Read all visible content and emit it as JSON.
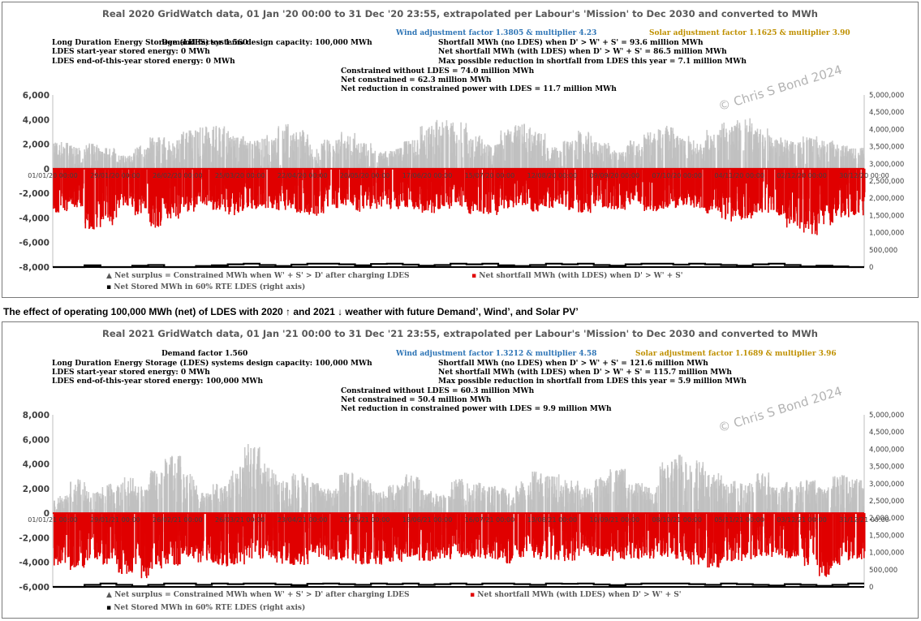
{
  "caption": "The effect of operating 100,000 MWh (net) of LDES with 2020 ↑ and 2021 ↓ weather with future Demand’, Wind’, and Solar PV’",
  "watermark": "© Chris S Bond  2024",
  "colors": {
    "surplus": "#bfbfbf",
    "shortfall": "#e00000",
    "stored": "#000000",
    "axis": "#404040",
    "zero_line": "#e00000"
  },
  "chart_data": [
    {
      "type": "scatter",
      "title": "Real 2020 GridWatch data, 01 Jan '20 00:00 to 31 Dec '20 23:55,  extrapolated per Labour's 'Mission' to Dec 2030 and converted to MWh",
      "info": {
        "demand": "Demand factor 1.560",
        "wind": "Wind adjustment factor 1.3805 & multiplier 4.23",
        "solar": "Solar adjustment factor 1.1625 & multiplier 3.90",
        "ldes_capacity": "Long Duration Energy Storage (LDES) systems design capacity: 100,000 MWh",
        "ldes_start": "LDES start-year stored energy: 0 MWh",
        "ldes_end": "LDES end-of-this-year stored energy: 0 MWh",
        "shortfall_no_ldes": "Shortfall MWh (no LDES) when D' > W' + S' = 93.6 million MWh",
        "shortfall_with_ldes": "Net shortfall MWh (with LDES) when D' > W' + S' = 86.5 million MWh",
        "max_reduction": "Max possible reduction in shortfall from LDES this year = 7.1 million MWh",
        "constrained_without": "Constrained without LDES = 74.0 million MWh",
        "net_constrained": "Net constrained = 62.3 million MWh",
        "net_reduction": "Net reduction in constrained power with LDES = 11.7 million MWh"
      },
      "y_left": {
        "min": -8000,
        "max": 6000,
        "ticks": [
          "6,000",
          "4,000",
          "2,000",
          "0",
          "-2,000",
          "-4,000",
          "-6,000",
          "-8,000"
        ]
      },
      "y_right": {
        "min": 0,
        "max": 5000000,
        "ticks": [
          "5,000,000",
          "4,500,000",
          "4,000,000",
          "3,500,000",
          "3,000,000",
          "2,500,000",
          "2,000,000",
          "1,500,000",
          "1,000,000",
          "500,000",
          "0"
        ]
      },
      "x_ticks": [
        "01/01/20 00:00",
        "29/01/20 00:00",
        "26/02/20 00:00",
        "25/03/20 00:00",
        "22/04/20 00:00",
        "20/05/20 00:00",
        "17/06/20 00:00",
        "15/07/20 00:00",
        "12/08/20 00:00",
        "09/09/20 00:00",
        "07/10/20 00:00",
        "04/11/20 00:00",
        "02/12/20 00:00",
        "30/12/20 00:00"
      ],
      "series": [
        {
          "name": "Net surplus = Constrained MWh when W' + S' > D' after charging LDES"
        },
        {
          "name": "Net shortfall MWh (with LDES) when D' > W' + S'"
        },
        {
          "name": "Net Stored MWh in 60% RTE LDES (right axis)"
        }
      ],
      "surplus_envelope": [
        2200,
        1900,
        2100,
        1700,
        1100,
        2000,
        2600,
        2400,
        3200,
        3600,
        3500,
        2700,
        2300,
        2800,
        3700,
        3200,
        2100,
        2400,
        3100,
        2100,
        1500,
        1700,
        2400,
        3500,
        4000,
        3800,
        2700,
        2000,
        3200,
        3700,
        3000,
        1800,
        2400,
        3100,
        2200,
        1500,
        2300,
        3100,
        3500,
        2900,
        2400,
        3200,
        4000,
        4300,
        3400,
        2600,
        2300,
        2700,
        2300,
        2000,
        1700
      ],
      "shortfall_envelope": [
        -3600,
        -3200,
        -5000,
        -4600,
        -3200,
        -3800,
        -4800,
        -4100,
        -3500,
        -3000,
        -3600,
        -3800,
        -3300,
        -3200,
        -3400,
        -3600,
        -3900,
        -3200,
        -3000,
        -3500,
        -3300,
        -3300,
        -3400,
        -3700,
        -3300,
        -3100,
        -3700,
        -3800,
        -3300,
        -3000,
        -3500,
        -3200,
        -3400,
        -3600,
        -3300,
        -3400,
        -3000,
        -3500,
        -3300,
        -3200,
        -3400,
        -3700,
        -4300,
        -4200,
        -3600,
        -3800,
        -4900,
        -5400,
        -4600,
        -4000,
        -3900
      ],
      "stored_steps": [
        0,
        0,
        50000,
        0,
        0,
        40000,
        60000,
        0,
        0,
        30000,
        50000,
        80000,
        100000,
        60000,
        30000,
        70000,
        100000,
        100000,
        80000,
        50000,
        90000,
        100000,
        70000,
        40000,
        60000,
        100000,
        80000,
        100000,
        50000,
        30000,
        60000,
        100000,
        80000,
        100000,
        60000,
        40000,
        80000,
        100000,
        100000,
        70000,
        100000,
        80000,
        60000,
        40000,
        80000,
        100000,
        60000,
        20000,
        40000,
        20000,
        0
      ]
    },
    {
      "type": "scatter",
      "title": "Real 2021 GridWatch data, 01 Jan '21 00:00 to 31 Dec '21 23:55,  extrapolated per Labour's 'Mission' to Dec 2030 and converted to MWh",
      "info": {
        "demand": "Demand factor 1.560",
        "wind": "Wind adjustment factor 1.3212 & multiplier 4.58",
        "solar": "Solar adjustment factor 1.1689 & multiplier 3.96",
        "ldes_capacity": "Long Duration Energy Storage (LDES) systems design capacity: 100,000 MWh",
        "ldes_start": "LDES start-year stored energy: 0 MWh",
        "ldes_end": "LDES end-of-this-year stored energy: 100,000 MWh",
        "shortfall_no_ldes": "Shortfall MWh (no LDES) when D' > W' + S' = 121.6 million MWh",
        "shortfall_with_ldes": "Net shortfall MWh (with LDES) when D' > W' + S' = 115.7 million MWh",
        "max_reduction": "Max possible reduction in shortfall from LDES this year = 5.9 million MWh",
        "constrained_without": "Constrained without LDES = 60.3 million MWh",
        "net_constrained": "Net constrained = 50.4 million MWh",
        "net_reduction": "Net reduction in constrained power with LDES = 9.9 million MWh"
      },
      "y_left": {
        "min": -6000,
        "max": 8000,
        "ticks": [
          "8,000",
          "6,000",
          "4,000",
          "2,000",
          "0",
          "-2,000",
          "-4,000",
          "-6,000"
        ]
      },
      "y_right": {
        "min": 0,
        "max": 5000000,
        "ticks": [
          "5,000,000",
          "4,500,000",
          "4,000,000",
          "3,500,000",
          "3,000,000",
          "2,500,000",
          "2,000,000",
          "1,500,000",
          "1,000,000",
          "500,000",
          "0"
        ]
      },
      "x_ticks": [
        "01/01/21 00:00",
        "29/01/21 00:00",
        "26/02/21 00:00",
        "26/03/21 00:00",
        "23/04/21 00:00",
        "21/05/21 00:00",
        "18/06/21 00:00",
        "16/07/21 00:00",
        "13/08/21 00:00",
        "10/09/21 00:00",
        "08/10/21 00:00",
        "05/11/21 00:00",
        "03/12/21 00:00",
        "31/12/21 00:00"
      ],
      "series": [
        {
          "name": "Net surplus = Constrained MWh when W' + S' > D' after charging LDES"
        },
        {
          "name": "Net shortfall MWh (with LDES) when D' > W' + S'"
        },
        {
          "name": "Net Stored MWh in 60% RTE LDES (right axis)"
        }
      ],
      "surplus_envelope": [
        1500,
        2800,
        1800,
        2400,
        3000,
        2200,
        3600,
        4700,
        3200,
        1700,
        2400,
        3800,
        5900,
        4300,
        2700,
        3300,
        2500,
        2000,
        3400,
        2900,
        1800,
        2300,
        3200,
        1900,
        1600,
        2800,
        2500,
        2300,
        2100,
        2600,
        3400,
        3200,
        2700,
        2100,
        3100,
        3600,
        2600,
        2200,
        4200,
        5000,
        4400,
        3300,
        2700,
        2500,
        3400,
        2200,
        2600,
        2700,
        2200,
        3100,
        2800
      ],
      "shortfall_envelope": [
        -4300,
        -4800,
        -3900,
        -4300,
        -5000,
        -5300,
        -4600,
        -4300,
        -3900,
        -4100,
        -4400,
        -4200,
        -3700,
        -3800,
        -4200,
        -4300,
        -3700,
        -3800,
        -3900,
        -4200,
        -4200,
        -4000,
        -3600,
        -3900,
        -3800,
        -3600,
        -3700,
        -3800,
        -4100,
        -3600,
        -3900,
        -3800,
        -3900,
        -3700,
        -3600,
        -3900,
        -3800,
        -3700,
        -3600,
        -3900,
        -4200,
        -4600,
        -4000,
        -3900,
        -3800,
        -3600,
        -3700,
        -4400,
        -5200,
        -4300,
        -3800
      ],
      "stored_steps": [
        0,
        0,
        60000,
        100000,
        60000,
        20000,
        60000,
        100000,
        100000,
        60000,
        100000,
        80000,
        100000,
        100000,
        70000,
        50000,
        90000,
        100000,
        80000,
        60000,
        100000,
        80000,
        100000,
        60000,
        80000,
        100000,
        70000,
        100000,
        100000,
        80000,
        60000,
        100000,
        90000,
        100000,
        70000,
        50000,
        80000,
        100000,
        100000,
        100000,
        80000,
        60000,
        100000,
        80000,
        60000,
        40000,
        80000,
        60000,
        30000,
        60000,
        100000
      ]
    }
  ]
}
